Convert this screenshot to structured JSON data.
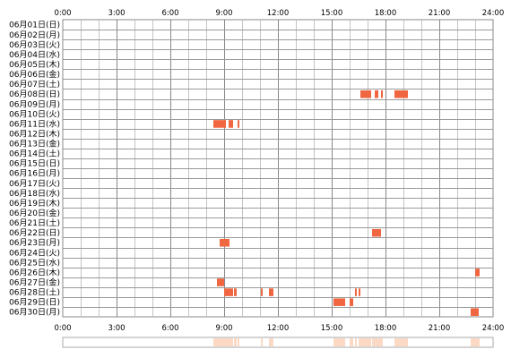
{
  "chart_data": {
    "type": "bar",
    "x_ticks": [
      "0:00",
      "3:00",
      "6:00",
      "9:00",
      "12:00",
      "15:00",
      "18:00",
      "21:00",
      "24:00"
    ],
    "xlim": [
      0,
      24
    ],
    "xlabel": "",
    "ylabel": "",
    "title": "",
    "grid": true,
    "categories": [
      "06月01日(日)",
      "06月02日(月)",
      "06月03日(火)",
      "06月04日(水)",
      "06月05日(木)",
      "06月06日(金)",
      "06月07日(土)",
      "06月08日(日)",
      "06月09日(月)",
      "06月10日(火)",
      "06月11日(水)",
      "06月12日(木)",
      "06月13日(金)",
      "06月14日(土)",
      "06月15日(日)",
      "06月16日(月)",
      "06月17日(火)",
      "06月18日(水)",
      "06月19日(木)",
      "06月20日(金)",
      "06月21日(土)",
      "06月22日(日)",
      "06月23日(月)",
      "06月24日(火)",
      "06月25日(水)",
      "06月26日(木)",
      "06月27日(金)",
      "06月28日(土)",
      "06月29日(日)",
      "06月30日(月)"
    ],
    "bar_color": "#f06640",
    "summary_color": "#fbd9c4",
    "intervals": [
      {
        "day": "06月08日(日)",
        "start": 16.6,
        "end": 17.2
      },
      {
        "day": "06月08日(日)",
        "start": 17.4,
        "end": 17.6
      },
      {
        "day": "06月08日(日)",
        "start": 17.75,
        "end": 17.85
      },
      {
        "day": "06月08日(日)",
        "start": 18.5,
        "end": 19.25
      },
      {
        "day": "06月11日(水)",
        "start": 8.4,
        "end": 9.1
      },
      {
        "day": "06月11日(水)",
        "start": 9.25,
        "end": 9.5
      },
      {
        "day": "06月11日(水)",
        "start": 9.75,
        "end": 9.85
      },
      {
        "day": "06月22日(日)",
        "start": 17.25,
        "end": 17.75
      },
      {
        "day": "06月23日(月)",
        "start": 8.75,
        "end": 9.3
      },
      {
        "day": "06月26日(木)",
        "start": 23.0,
        "end": 23.25
      },
      {
        "day": "06月27日(金)",
        "start": 8.6,
        "end": 9.0
      },
      {
        "day": "06月28日(土)",
        "start": 9.0,
        "end": 9.5
      },
      {
        "day": "06月28日(土)",
        "start": 9.55,
        "end": 9.7
      },
      {
        "day": "06月28日(土)",
        "start": 11.05,
        "end": 11.15
      },
      {
        "day": "06月28日(土)",
        "start": 11.5,
        "end": 11.75
      },
      {
        "day": "06月28日(土)",
        "start": 16.3,
        "end": 16.4
      },
      {
        "day": "06月28日(土)",
        "start": 16.5,
        "end": 16.6
      },
      {
        "day": "06月29日(日)",
        "start": 15.1,
        "end": 15.75
      },
      {
        "day": "06月29日(日)",
        "start": 16.0,
        "end": 16.2
      },
      {
        "day": "06月30日(月)",
        "start": 22.75,
        "end": 23.2
      }
    ]
  }
}
